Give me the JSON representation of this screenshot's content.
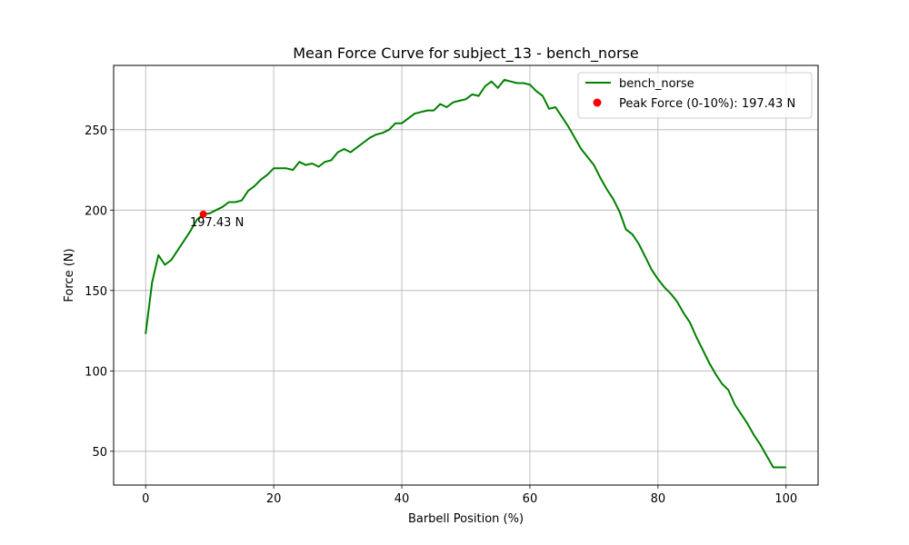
{
  "chart_data": {
    "type": "line",
    "title": "Mean Force Curve for subject_13 - bench_norse",
    "xlabel": "Barbell Position (%)",
    "ylabel": "Force (N)",
    "xlim": [
      -5,
      105
    ],
    "ylim": [
      29,
      290
    ],
    "x_ticks": [
      0,
      20,
      40,
      60,
      80,
      100
    ],
    "y_ticks": [
      50,
      100,
      150,
      200,
      250
    ],
    "grid": true,
    "legend_position": "top-right",
    "series": [
      {
        "name": "bench_norse",
        "color": "#008000",
        "x": [
          0,
          1,
          2,
          3,
          4,
          5,
          6,
          7,
          8,
          9,
          10,
          11,
          12,
          13,
          14,
          15,
          16,
          17,
          18,
          19,
          20,
          21,
          22,
          23,
          24,
          25,
          26,
          27,
          28,
          29,
          30,
          31,
          32,
          33,
          34,
          35,
          36,
          37,
          38,
          39,
          40,
          41,
          42,
          43,
          44,
          45,
          46,
          47,
          48,
          49,
          50,
          51,
          52,
          53,
          54,
          55,
          56,
          57,
          58,
          59,
          60,
          61,
          62,
          63,
          64,
          65,
          66,
          67,
          68,
          69,
          70,
          71,
          72,
          73,
          74,
          75,
          76,
          77,
          78,
          79,
          80,
          81,
          82,
          83,
          84,
          85,
          86,
          87,
          88,
          89,
          90,
          91,
          92,
          93,
          94,
          95,
          96,
          97,
          98,
          99,
          100
        ],
        "y": [
          123,
          155,
          172,
          166,
          169,
          175,
          181,
          187,
          194,
          197.43,
          198,
          200,
          202,
          205,
          205,
          206,
          212,
          215,
          219,
          222,
          226,
          226,
          226,
          225,
          230,
          228,
          229,
          227,
          230,
          231,
          236,
          238,
          236,
          239,
          242,
          245,
          247,
          248,
          250,
          254,
          254,
          257,
          260,
          261,
          262,
          262,
          266,
          264,
          267,
          268,
          269,
          272,
          271,
          277,
          280,
          276,
          281,
          280,
          279,
          279,
          278,
          274,
          271,
          263,
          264,
          258,
          252,
          245,
          238,
          233,
          228,
          220,
          213,
          207,
          199,
          188,
          185,
          179,
          171,
          163,
          157,
          152,
          148,
          143,
          136,
          130,
          121,
          113,
          105,
          98,
          92,
          88,
          79,
          73,
          67,
          60,
          54,
          47,
          40,
          40,
          40
        ]
      }
    ],
    "scatter": [
      {
        "name": "Peak Force (0-10%): 197.43 N",
        "color": "#ff0000",
        "x": 9,
        "y": 197.43
      }
    ],
    "annotations": [
      {
        "text": "197.43 N",
        "x": 9,
        "y": 197.43
      }
    ]
  }
}
